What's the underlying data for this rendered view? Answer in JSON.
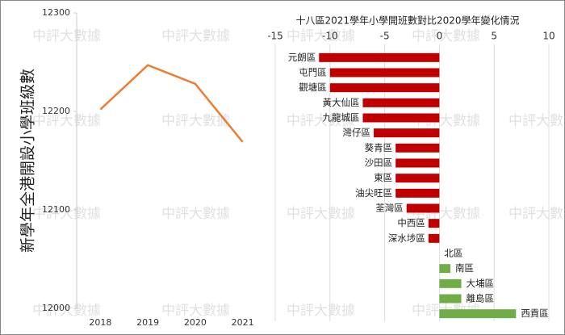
{
  "watermark": "中評大數據",
  "chart_data": [
    {
      "type": "line",
      "y_label": "新學年全港開設小學班級數",
      "categories": [
        "2018",
        "2019",
        "2020",
        "2021"
      ],
      "values": [
        12202,
        12247,
        12228,
        12169
      ],
      "color": "#ed7d31",
      "ylim": [
        12000,
        12300
      ],
      "yticks": [
        12000,
        12100,
        12200,
        12300
      ]
    },
    {
      "type": "hbar",
      "title": "十八區2021學年小學開班數對比2020學年變化情況",
      "categories": [
        "元朗區",
        "屯門區",
        "觀塘區",
        "黃大仙區",
        "九龍城區",
        "灣仔區",
        "葵青區",
        "沙田區",
        "東區",
        "油尖旺區",
        "荃灣區",
        "中西區",
        "深水埗區",
        "北區",
        "南區",
        "大埔區",
        "離島區",
        "西貢區"
      ],
      "values": [
        -11,
        -10,
        -10,
        -7,
        -7,
        -6,
        -4,
        -4,
        -4,
        -4,
        -3,
        -1,
        -1,
        0,
        1,
        2,
        2,
        7
      ],
      "color_negative": "#c00000",
      "color_positive": "#70ad47",
      "xlim": [
        -15,
        10
      ],
      "xticks": [
        -15,
        -10,
        -5,
        0,
        5,
        10
      ],
      "grid": true
    }
  ]
}
